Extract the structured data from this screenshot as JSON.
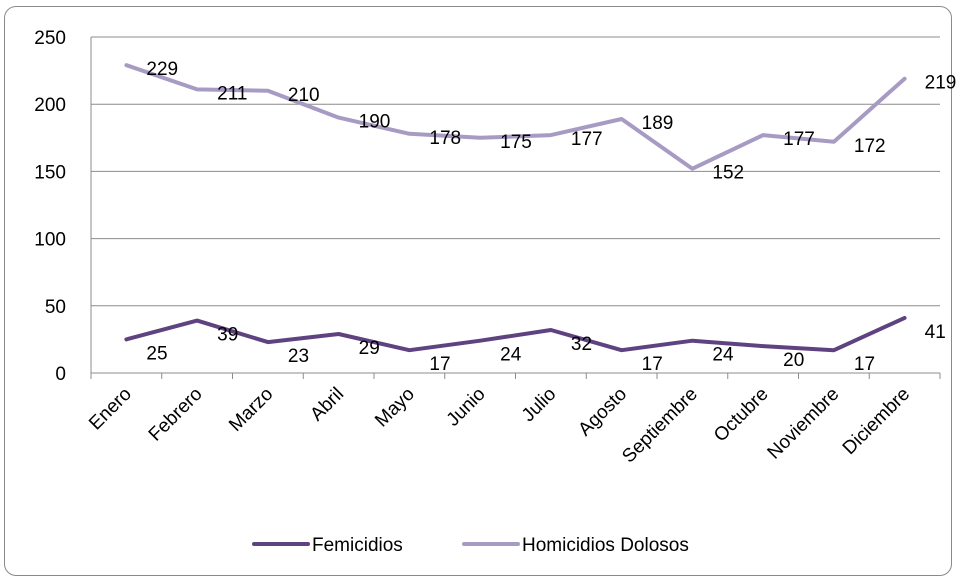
{
  "chart_data": {
    "type": "line",
    "categories": [
      "Enero",
      "Febrero",
      "Marzo",
      "Abril",
      "Mayo",
      "Junio",
      "Julio",
      "Agosto",
      "Septiembre",
      "Octubre",
      "Noviembre",
      "Diciembre"
    ],
    "series": [
      {
        "name": "Femicidios",
        "color": "#5e4380",
        "values": [
          25,
          39,
          23,
          29,
          17,
          24,
          32,
          17,
          24,
          20,
          17,
          41
        ]
      },
      {
        "name": "Homicidios Dolosos",
        "color": "#a79bc4",
        "values": [
          229,
          211,
          210,
          190,
          178,
          175,
          177,
          189,
          152,
          177,
          172,
          219
        ]
      }
    ],
    "y_ticks": [
      0,
      50,
      100,
      150,
      200,
      250
    ],
    "ylim": [
      0,
      250
    ],
    "grid": true,
    "legend_position": "bottom",
    "data_labels": true
  }
}
